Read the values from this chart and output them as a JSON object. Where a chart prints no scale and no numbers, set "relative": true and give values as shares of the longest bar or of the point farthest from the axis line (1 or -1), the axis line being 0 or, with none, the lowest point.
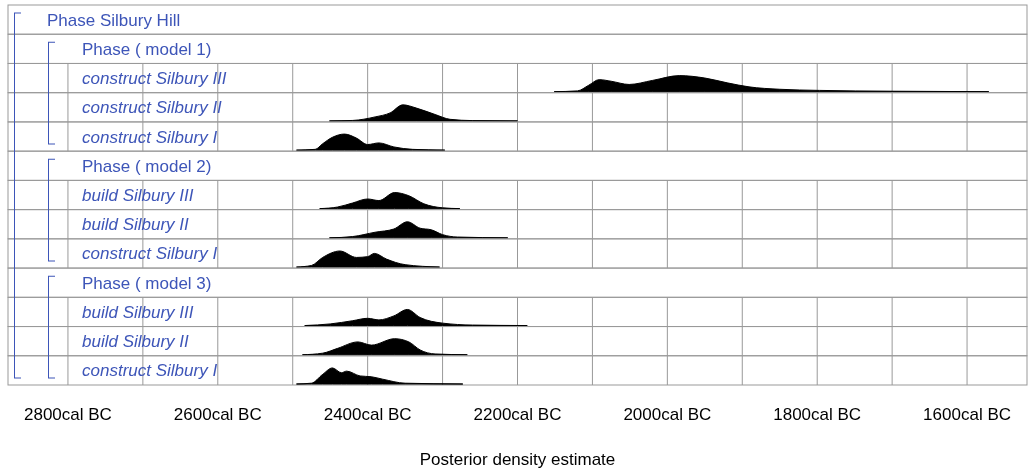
{
  "chart_data": [
    {
      "type": "other",
      "title": "Phase Silbury Hill"
    },
    {
      "type": "other",
      "title": "Phase ( model 1)"
    },
    {
      "type": "area",
      "relative": true,
      "title": "construct Silbury III",
      "grid": "x",
      "tick_labels": false,
      "xlim": [
        2880,
        1520
      ],
      "xticks": [
        2800,
        2700,
        2600,
        2500,
        2400,
        2300,
        2200,
        2100,
        2000,
        1900,
        1800,
        1700,
        1600
      ],
      "series": [
        {
          "color": "#000000",
          "x": [
            2151,
            2120,
            2105,
            2091,
            2075,
            2051,
            2020,
            1984,
            1950,
            1920,
            1891,
            1850,
            1797,
            1700,
            1571
          ],
          "values": [
            0,
            0.05,
            0.4,
            0.75,
            0.65,
            0.45,
            0.7,
            1,
            0.85,
            0.55,
            0.3,
            0.15,
            0.08,
            0.03,
            0
          ]
        }
      ]
    },
    {
      "type": "area",
      "relative": true,
      "title": "construct Silbury II",
      "grid": "x",
      "tick_labels": false,
      "xlim": [
        2880,
        1520
      ],
      "xticks": [
        2800,
        2700,
        2600,
        2500,
        2400,
        2300,
        2200,
        2100,
        2000,
        1900,
        1800,
        1700,
        1600
      ],
      "series": [
        {
          "color": "#000000",
          "x": [
            2451,
            2420,
            2390,
            2370,
            2353,
            2335,
            2310,
            2290,
            2260,
            2200
          ],
          "values": [
            0,
            0.03,
            0.25,
            0.5,
            1,
            0.8,
            0.4,
            0.1,
            0.02,
            0
          ]
        }
      ]
    },
    {
      "type": "area",
      "relative": true,
      "title": "construct Silbury I",
      "grid": "x",
      "tick_labels": false,
      "xlim": [
        2880,
        1520
      ],
      "xticks": [
        2800,
        2700,
        2600,
        2500,
        2400,
        2300,
        2200,
        2100,
        2000,
        1900,
        1800,
        1700,
        1600
      ],
      "series": [
        {
          "color": "#000000",
          "x": [
            2495,
            2470,
            2460,
            2447,
            2431,
            2415,
            2400,
            2385,
            2365,
            2340,
            2297
          ],
          "values": [
            0,
            0.05,
            0.4,
            0.8,
            1,
            0.75,
            0.35,
            0.45,
            0.2,
            0.05,
            0
          ]
        }
      ]
    },
    {
      "type": "other",
      "title": "Phase ( model 2)"
    },
    {
      "type": "area",
      "relative": true,
      "title": "build Silbury III",
      "grid": "x",
      "tick_labels": false,
      "xlim": [
        2880,
        1520
      ],
      "xticks": [
        2800,
        2700,
        2600,
        2500,
        2400,
        2300,
        2200,
        2100,
        2000,
        1900,
        1800,
        1700,
        1600
      ],
      "series": [
        {
          "color": "#000000",
          "x": [
            2464,
            2440,
            2420,
            2400,
            2385,
            2364,
            2345,
            2325,
            2300,
            2277
          ],
          "values": [
            0,
            0.1,
            0.35,
            0.6,
            0.5,
            1,
            0.8,
            0.3,
            0.05,
            0
          ]
        }
      ]
    },
    {
      "type": "area",
      "relative": true,
      "title": "build Silbury II",
      "grid": "x",
      "tick_labels": false,
      "xlim": [
        2880,
        1520
      ],
      "xticks": [
        2800,
        2700,
        2600,
        2500,
        2400,
        2300,
        2200,
        2100,
        2000,
        1900,
        1800,
        1700,
        1600
      ],
      "series": [
        {
          "color": "#000000",
          "x": [
            2451,
            2420,
            2390,
            2365,
            2347,
            2330,
            2315,
            2300,
            2280,
            2213
          ],
          "values": [
            0,
            0.08,
            0.35,
            0.55,
            1,
            0.6,
            0.5,
            0.2,
            0.05,
            0
          ]
        }
      ]
    },
    {
      "type": "area",
      "relative": true,
      "title": "construct Silbury I",
      "grid": "x",
      "tick_labels": false,
      "xlim": [
        2880,
        1520
      ],
      "xticks": [
        2800,
        2700,
        2600,
        2500,
        2400,
        2300,
        2200,
        2100,
        2000,
        1900,
        1800,
        1700,
        1600
      ],
      "series": [
        {
          "color": "#000000",
          "x": [
            2495,
            2475,
            2460,
            2437,
            2415,
            2400,
            2391,
            2375,
            2350,
            2304
          ],
          "values": [
            0,
            0.1,
            0.6,
            1,
            0.6,
            0.65,
            0.85,
            0.5,
            0.15,
            0
          ]
        }
      ]
    },
    {
      "type": "other",
      "title": "Phase ( model 3)"
    },
    {
      "type": "area",
      "relative": true,
      "title": "build Silbury III",
      "grid": "x",
      "tick_labels": false,
      "xlim": [
        2880,
        1520
      ],
      "xticks": [
        2800,
        2700,
        2600,
        2500,
        2400,
        2300,
        2200,
        2100,
        2000,
        1900,
        1800,
        1700,
        1600
      ],
      "series": [
        {
          "color": "#000000",
          "x": [
            2484,
            2450,
            2420,
            2400,
            2385,
            2365,
            2347,
            2330,
            2300,
            2260,
            2187
          ],
          "values": [
            0,
            0.1,
            0.3,
            0.45,
            0.35,
            0.6,
            1,
            0.5,
            0.15,
            0.03,
            0
          ]
        }
      ]
    },
    {
      "type": "area",
      "relative": true,
      "title": "build Silbury II",
      "grid": "x",
      "tick_labels": false,
      "xlim": [
        2880,
        1520
      ],
      "xticks": [
        2800,
        2700,
        2600,
        2500,
        2400,
        2300,
        2200,
        2100,
        2000,
        1900,
        1800,
        1700,
        1600
      ],
      "series": [
        {
          "color": "#000000",
          "x": [
            2487,
            2460,
            2440,
            2413,
            2395,
            2364,
            2345,
            2330,
            2310,
            2267
          ],
          "values": [
            0,
            0.1,
            0.4,
            0.8,
            0.6,
            1,
            0.8,
            0.3,
            0.05,
            0
          ]
        }
      ]
    },
    {
      "type": "area",
      "relative": true,
      "title": "construct Silbury I",
      "xlabel": "Posterior density estimate",
      "grid": "x",
      "tick_labels": "x",
      "xlim": [
        2880,
        1520
      ],
      "xticks": [
        {
          "value": 2800,
          "label": "2800cal BC"
        },
        {
          "value": 2700,
          "label": null
        },
        {
          "value": 2600,
          "label": "2600cal BC"
        },
        {
          "value": 2500,
          "label": null
        },
        {
          "value": 2400,
          "label": "2400cal BC"
        },
        {
          "value": 2300,
          "label": null
        },
        {
          "value": 2200,
          "label": "2200cal BC"
        },
        {
          "value": 2100,
          "label": null
        },
        {
          "value": 2000,
          "label": "2000cal BC"
        },
        {
          "value": 1900,
          "label": null
        },
        {
          "value": 1800,
          "label": "1800cal BC"
        },
        {
          "value": 1700,
          "label": null
        },
        {
          "value": 1600,
          "label": "1600cal BC"
        }
      ],
      "series": [
        {
          "color": "#000000",
          "x": [
            2495,
            2475,
            2460,
            2447,
            2435,
            2428,
            2410,
            2395,
            2380,
            2350,
            2273
          ],
          "values": [
            0,
            0.05,
            0.6,
            1,
            0.7,
            0.8,
            0.5,
            0.45,
            0.3,
            0.05,
            0
          ]
        }
      ]
    }
  ]
}
